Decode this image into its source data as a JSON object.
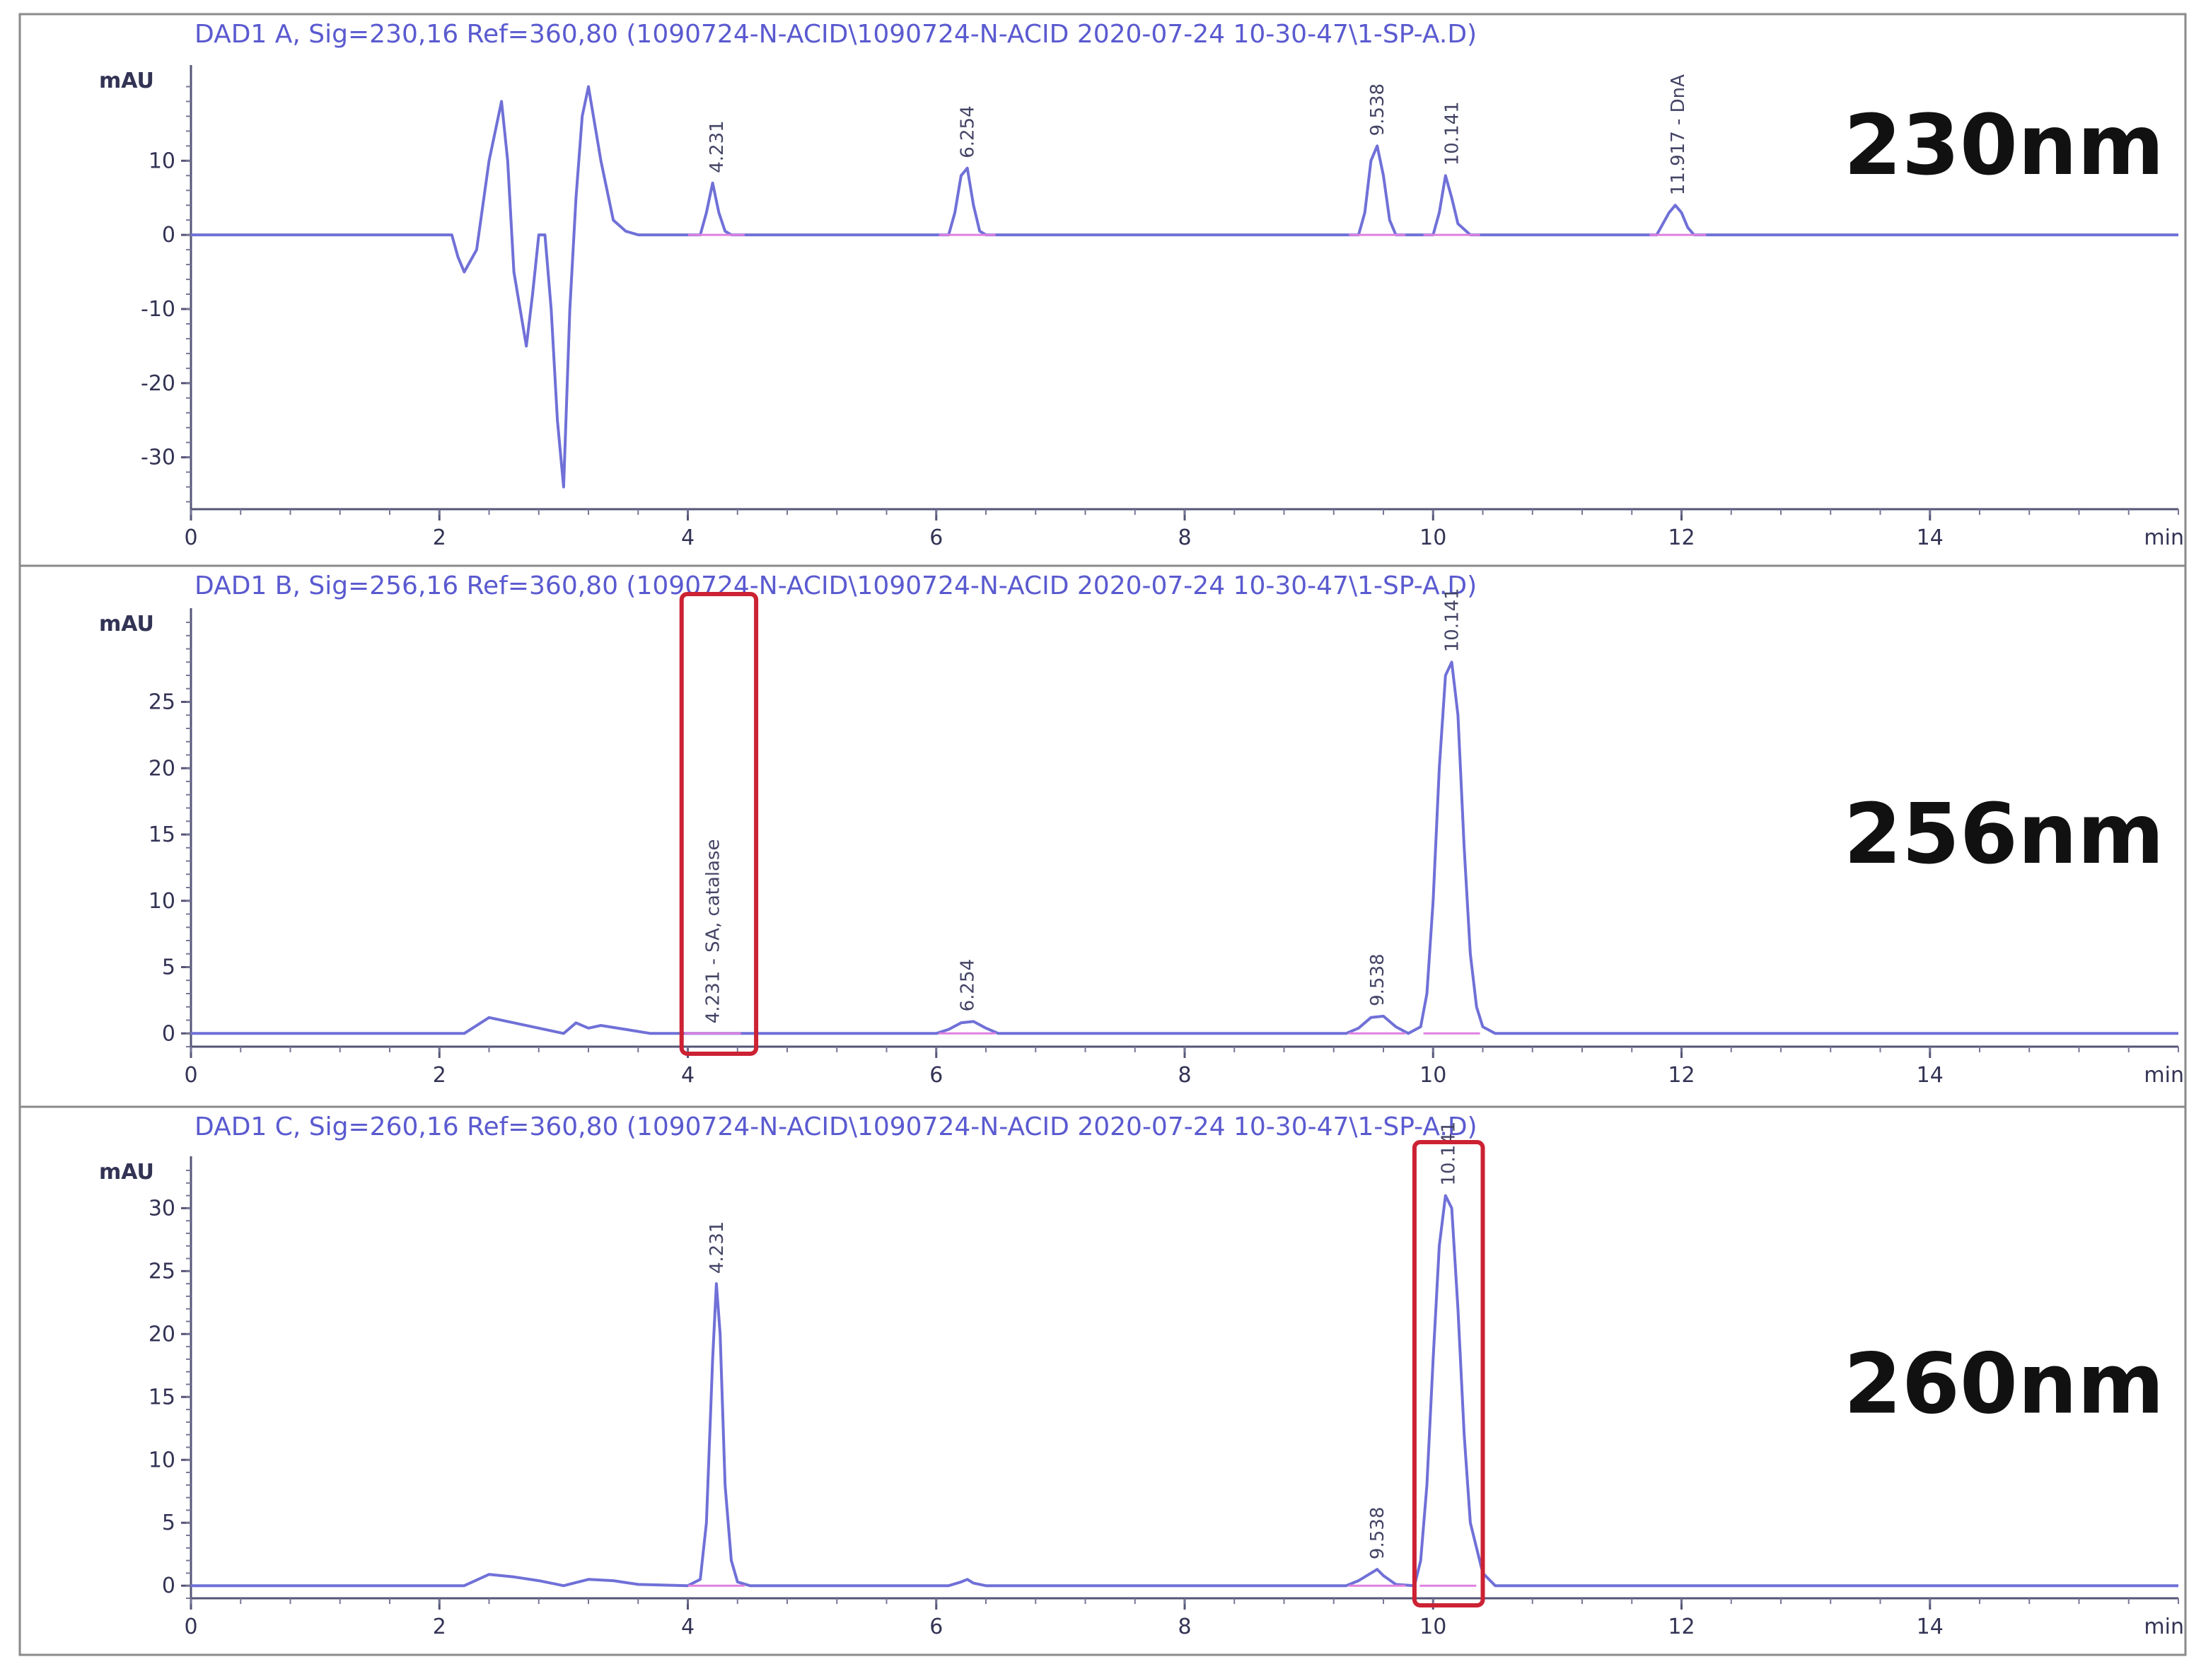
{
  "chart_data": [
    {
      "type": "line",
      "header": "DAD1 A, Sig=230,16 Ref=360,80 (1090724-N-ACID\\1090724-N-ACID 2020-07-24 10-30-47\\1-SP-A.D)",
      "wavelength_label": "230nm",
      "ylabel": "mAU",
      "xlabel": "",
      "x_unit": "min",
      "xlim": [
        0,
        16
      ],
      "ylim": [
        -37,
        21
      ],
      "x_ticks": [
        0,
        2,
        4,
        6,
        8,
        10,
        12,
        14
      ],
      "y_ticks": [
        10,
        0,
        -10,
        -20,
        -30
      ],
      "y_tick_labels": [
        "10",
        "0",
        "-10",
        "-20",
        "-30"
      ],
      "series": [
        {
          "x": [
            0,
            2.1,
            2.15,
            2.2,
            2.3,
            2.4,
            2.5,
            2.55,
            2.6,
            2.7,
            2.75,
            2.8,
            2.85,
            2.9,
            2.95,
            3.0,
            3.05,
            3.1,
            3.15,
            3.2,
            3.3,
            3.4,
            3.5,
            3.6,
            3.8,
            4.1,
            4.15,
            4.2,
            4.25,
            4.3,
            4.35,
            4.4,
            6.1,
            6.15,
            6.2,
            6.25,
            6.3,
            6.35,
            6.4,
            9.4,
            9.45,
            9.5,
            9.55,
            9.6,
            9.65,
            9.7,
            10.0,
            10.05,
            10.1,
            10.15,
            10.2,
            10.3,
            11.8,
            11.85,
            11.9,
            11.95,
            12.0,
            12.05,
            12.1,
            16
          ],
          "y": [
            0,
            0,
            -3,
            -5,
            -2,
            10,
            18,
            10,
            -5,
            -15,
            -8,
            0,
            0,
            -10,
            -25,
            -34,
            -10,
            5,
            16,
            20,
            10,
            2,
            0.5,
            0,
            0,
            0,
            3,
            7,
            3,
            0.5,
            0,
            0,
            0,
            3,
            8,
            9,
            4,
            0.5,
            0,
            0,
            3,
            10,
            12,
            8,
            2,
            0,
            0,
            3,
            8,
            5,
            1.5,
            0,
            0,
            1.5,
            3,
            4,
            3,
            1,
            0,
            0
          ]
        }
      ],
      "peak_labels": [
        {
          "rt": 4.23,
          "text": "4.231"
        },
        {
          "rt": 6.25,
          "text": "6.254"
        },
        {
          "rt": 9.55,
          "text": "9.538"
        },
        {
          "rt": 10.15,
          "text": "10.141"
        },
        {
          "rt": 11.97,
          "text": "11.917 - DnA"
        }
      ],
      "highlight_boxes": []
    },
    {
      "type": "line",
      "header": "DAD1 B, Sig=256,16 Ref=360,80 (1090724-N-ACID\\1090724-N-ACID 2020-07-24 10-30-47\\1-SP-A.D)",
      "wavelength_label": "256nm",
      "ylabel": "mAU",
      "xlabel": "",
      "x_unit": "min",
      "xlim": [
        0,
        16
      ],
      "ylim": [
        -1,
        31
      ],
      "x_ticks": [
        0,
        2,
        4,
        6,
        8,
        10,
        12,
        14
      ],
      "y_ticks": [
        25,
        20,
        15,
        10,
        5,
        0
      ],
      "y_tick_labels": [
        "25",
        "20",
        "15",
        "10",
        "5",
        "0"
      ],
      "series": [
        {
          "x": [
            0,
            2.2,
            2.4,
            2.6,
            2.8,
            3.0,
            3.1,
            3.2,
            3.3,
            3.5,
            3.7,
            4.0,
            6.0,
            6.1,
            6.2,
            6.3,
            6.4,
            6.5,
            9.3,
            9.4,
            9.5,
            9.6,
            9.7,
            9.8,
            9.9,
            9.95,
            10.0,
            10.05,
            10.1,
            10.15,
            10.2,
            10.25,
            10.3,
            10.35,
            10.4,
            10.5,
            16
          ],
          "y": [
            0,
            0,
            1.2,
            0.8,
            0.4,
            0,
            0.8,
            0.4,
            0.6,
            0.3,
            0,
            0,
            0,
            0.3,
            0.8,
            0.9,
            0.4,
            0,
            0,
            0.4,
            1.2,
            1.3,
            0.5,
            0,
            0.5,
            3,
            10,
            20,
            27,
            28,
            24,
            14,
            6,
            2,
            0.5,
            0,
            0
          ]
        }
      ],
      "peak_labels": [
        {
          "rt": 4.2,
          "text": "4.231 - SA, catalase"
        },
        {
          "rt": 6.25,
          "text": "6.254"
        },
        {
          "rt": 9.55,
          "text": "9.538"
        },
        {
          "rt": 10.15,
          "text": "10.141"
        }
      ],
      "highlight_boxes": [
        {
          "x_from": 3.95,
          "x_to": 4.55
        }
      ]
    },
    {
      "type": "line",
      "header": "DAD1 C, Sig=260,16 Ref=360,80 (1090724-N-ACID\\1090724-N-ACID 2020-07-24 10-30-47\\1-SP-A.D)",
      "wavelength_label": "260nm",
      "ylabel": "mAU",
      "xlabel": "",
      "x_unit": "min",
      "xlim": [
        0,
        16
      ],
      "ylim": [
        -1,
        33
      ],
      "x_ticks": [
        0,
        2,
        4,
        6,
        8,
        10,
        12,
        14
      ],
      "y_ticks": [
        30,
        25,
        20,
        15,
        10,
        5,
        0
      ],
      "y_tick_labels": [
        "30",
        "25",
        "20",
        "15",
        "10",
        "5",
        "0"
      ],
      "series": [
        {
          "x": [
            0,
            2.2,
            2.4,
            2.6,
            2.8,
            3.0,
            3.2,
            3.4,
            3.6,
            4.0,
            4.1,
            4.15,
            4.2,
            4.23,
            4.26,
            4.3,
            4.35,
            4.4,
            4.5,
            6.1,
            6.2,
            6.25,
            6.3,
            6.4,
            9.3,
            9.4,
            9.5,
            9.55,
            9.6,
            9.7,
            9.85,
            9.9,
            9.95,
            10.0,
            10.05,
            10.1,
            10.15,
            10.2,
            10.25,
            10.3,
            10.4,
            10.5,
            16
          ],
          "y": [
            0,
            0,
            0.9,
            0.7,
            0.4,
            0,
            0.5,
            0.4,
            0.1,
            0,
            0.5,
            5,
            18,
            24,
            20,
            8,
            2,
            0.3,
            0,
            0,
            0.3,
            0.5,
            0.2,
            0,
            0,
            0.4,
            1,
            1.3,
            0.8,
            0.1,
            0,
            2,
            8,
            18,
            27,
            31,
            30,
            22,
            12,
            5,
            1,
            0,
            0
          ]
        }
      ],
      "peak_labels": [
        {
          "rt": 4.23,
          "text": "4.231"
        },
        {
          "rt": 9.55,
          "text": "9.538"
        },
        {
          "rt": 10.12,
          "text": "10.141"
        }
      ],
      "highlight_boxes": [
        {
          "x_from": 9.85,
          "x_to": 10.4
        }
      ]
    }
  ]
}
